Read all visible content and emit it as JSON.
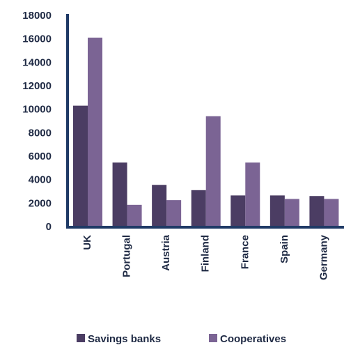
{
  "chart_data": {
    "type": "bar",
    "categories": [
      "UK",
      "Portugal",
      "Austria",
      "Finland",
      "France",
      "Spain",
      "Germany"
    ],
    "series": [
      {
        "name": "Savings banks",
        "values": [
          10300,
          5450,
          3550,
          3100,
          2650,
          2650,
          2600
        ],
        "color": "#4b3d63"
      },
      {
        "name": "Cooperatives",
        "values": [
          16100,
          1850,
          2250,
          9400,
          5450,
          2350,
          2350
        ],
        "color": "#7b6494"
      }
    ],
    "yticks": [
      "0",
      "2000",
      "4000",
      "6000",
      "8000",
      "10000",
      "12000",
      "14000",
      "16000",
      "18000"
    ],
    "ylim": [
      0,
      18000
    ],
    "axis_color": "#1f3a66",
    "title": "",
    "xlabel": "",
    "ylabel": "",
    "legend_position": "bottom"
  }
}
